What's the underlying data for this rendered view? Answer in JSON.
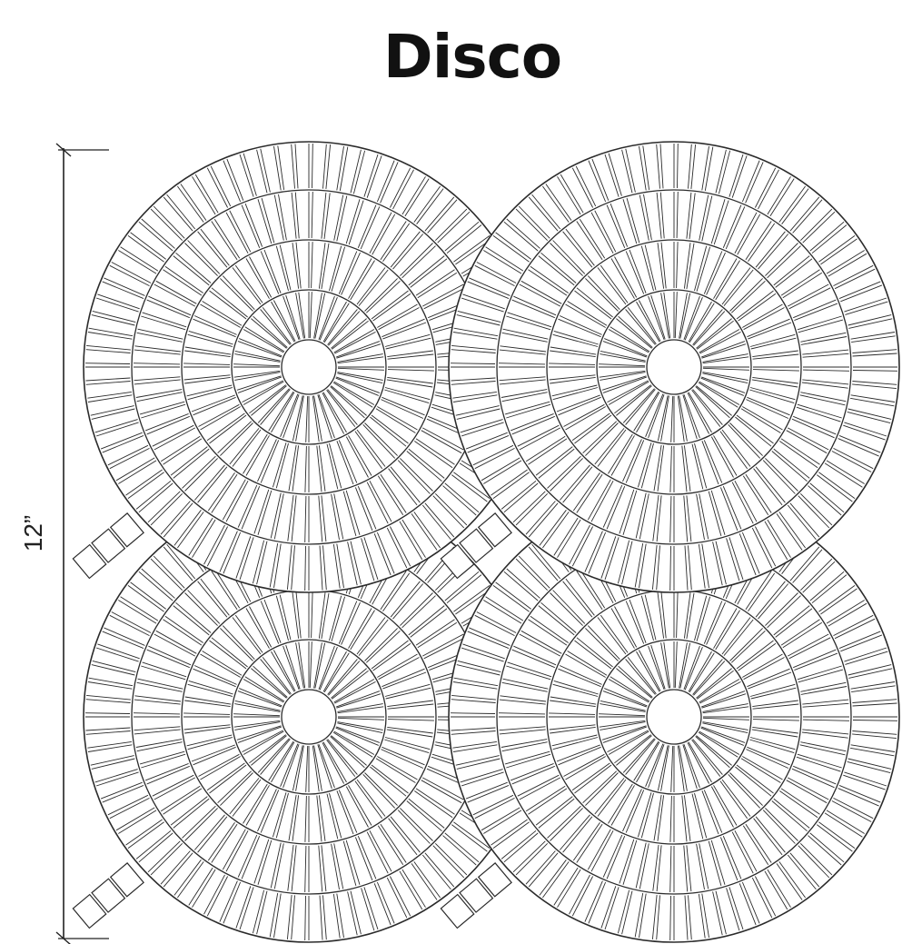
{
  "title": "Disco",
  "dimension": {
    "label": "12”"
  },
  "colors": {
    "line": "#2b2b2b",
    "background": "#ffffff"
  }
}
